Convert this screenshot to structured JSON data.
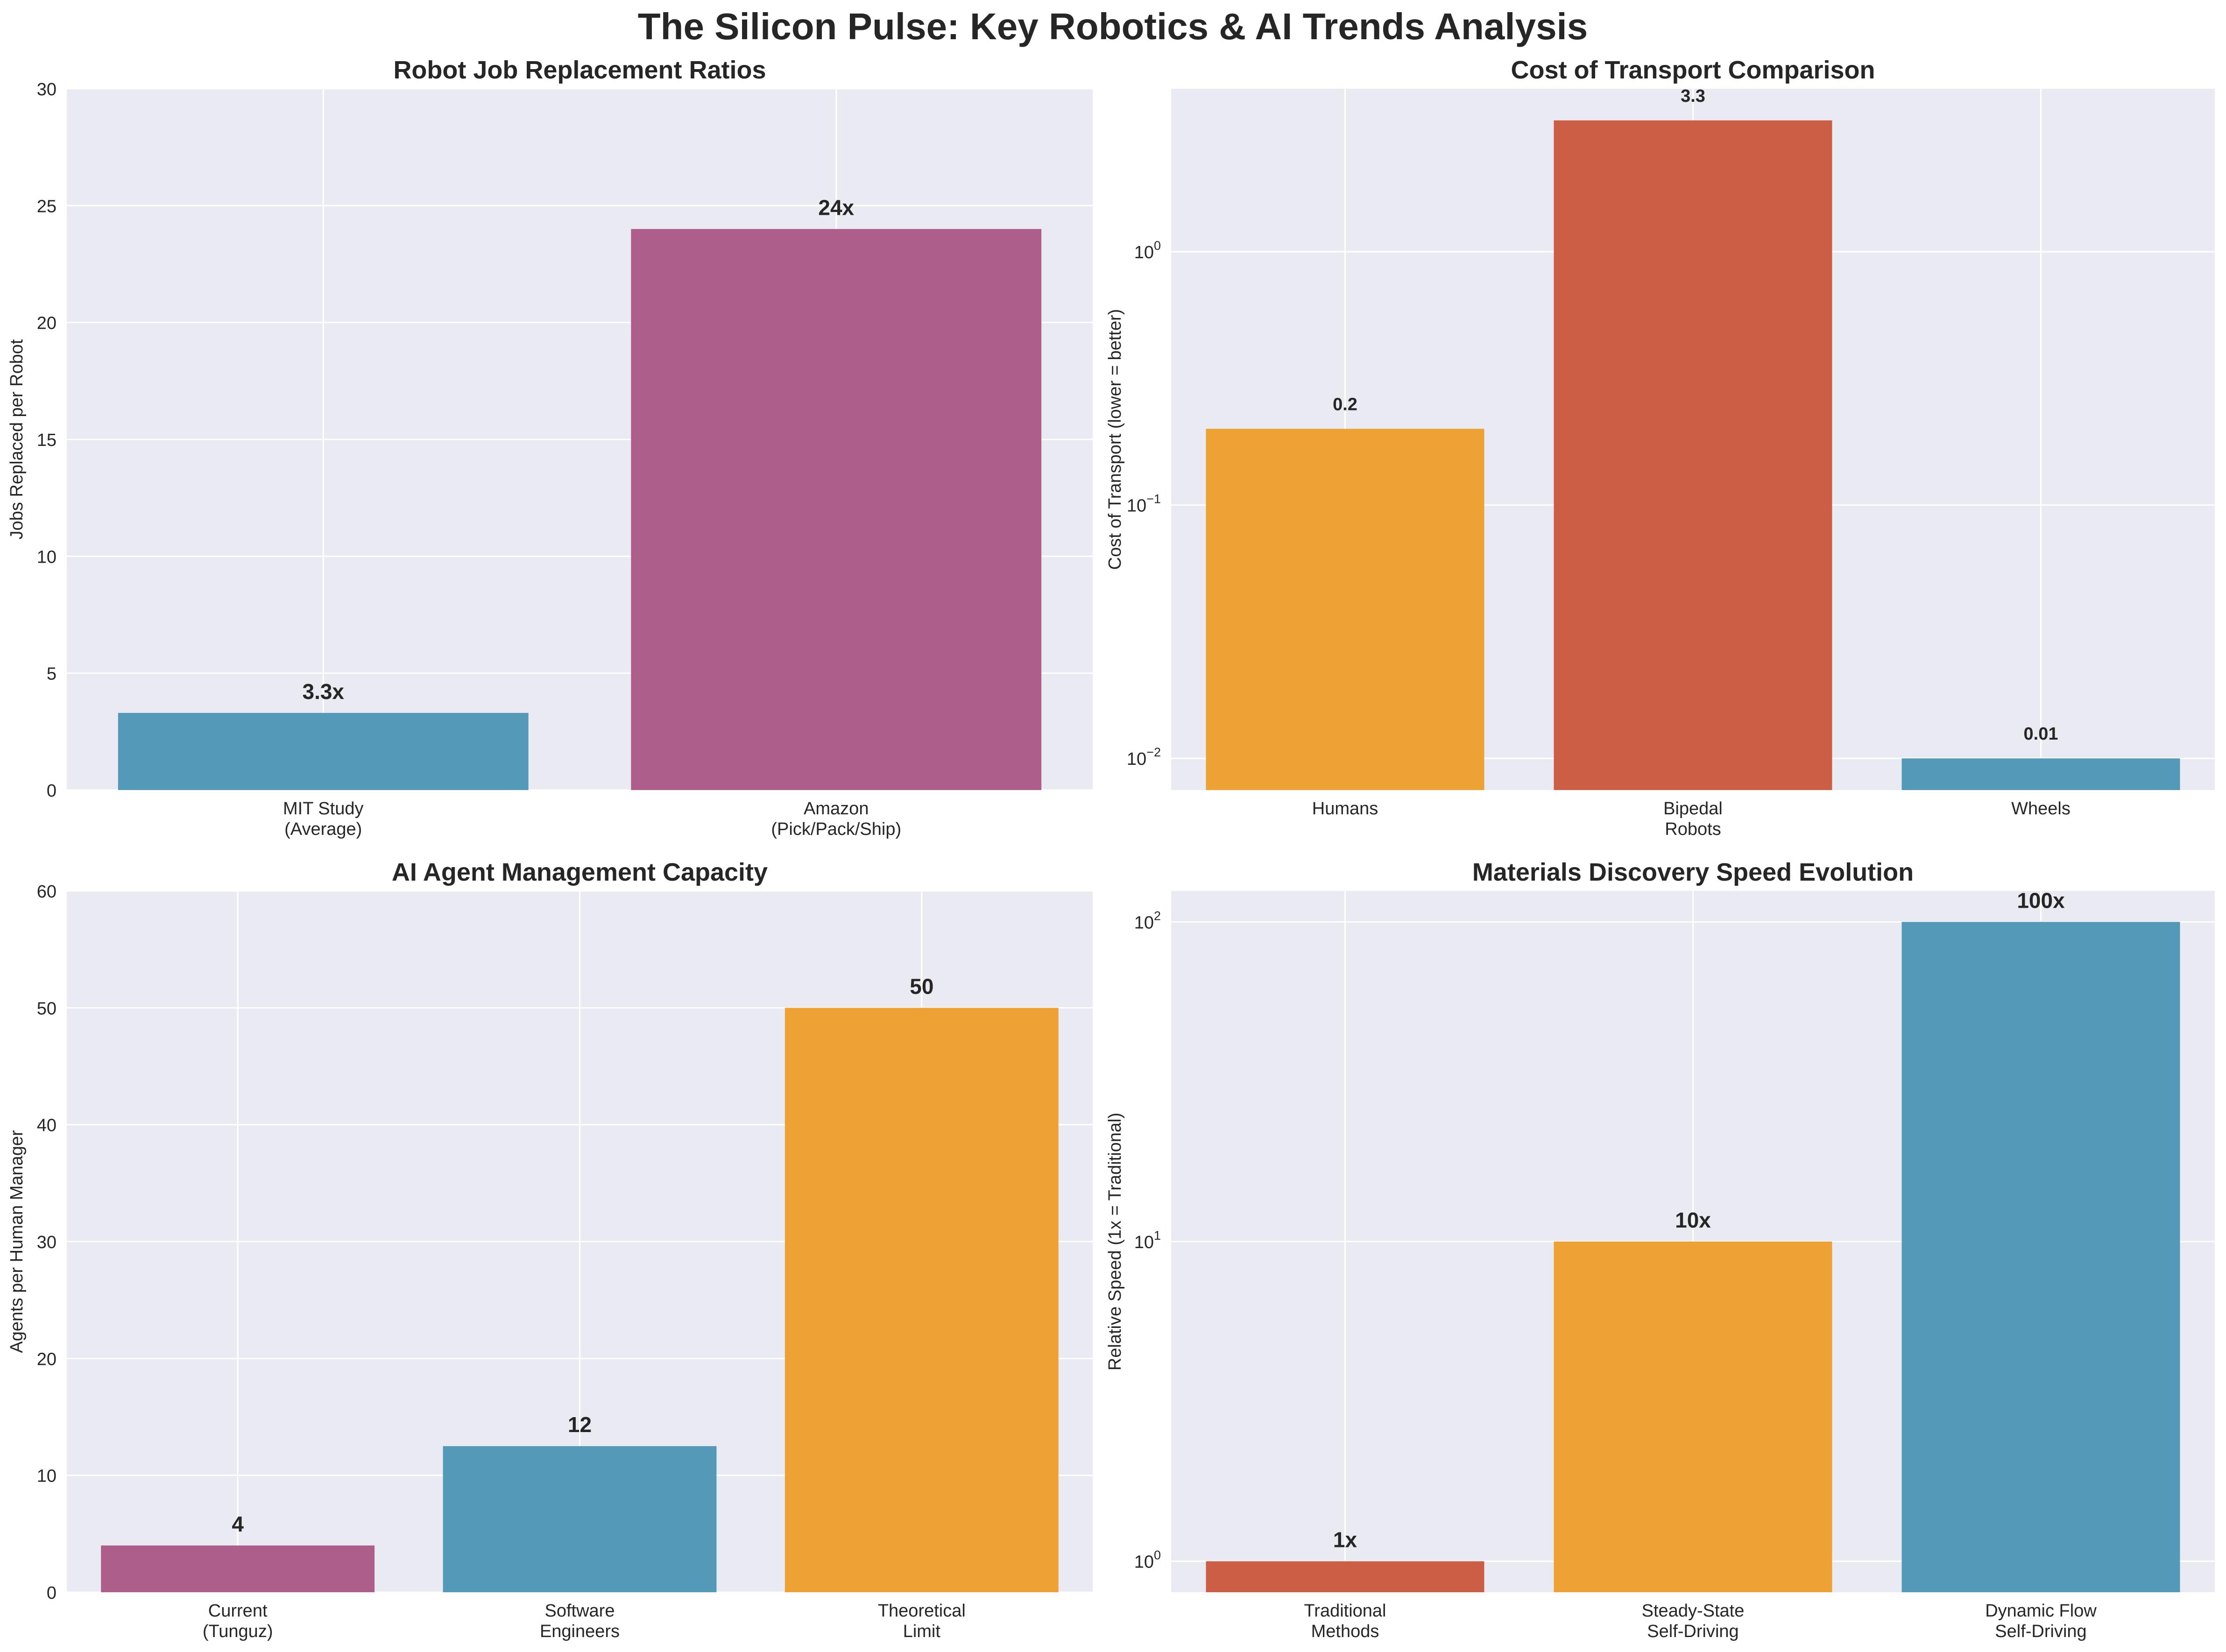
{
  "figure": {
    "suptitle": "The Silicon Pulse: Key Robotics & AI Trends Analysis"
  },
  "colors": {
    "panel_bg": "#eaeaf2",
    "grid": "#ffffff",
    "blue": "#5599b9",
    "magenta": "#ad5e8a",
    "orange": "#eea234",
    "red": "#cd5e46",
    "text": "#262626"
  },
  "chart_data": [
    {
      "id": "robot-job-replacement",
      "type": "bar",
      "title": "Robot Job Replacement Ratios",
      "xlabel": "",
      "ylabel": "Jobs Replaced per Robot",
      "scale": "linear",
      "ylim": [
        0,
        30
      ],
      "yticks": [
        "0",
        "5",
        "10",
        "15",
        "20",
        "25",
        "30"
      ],
      "ytick_values": [
        0,
        5,
        10,
        15,
        20,
        25,
        30
      ],
      "categories": [
        [
          "MIT Study",
          "(Average)"
        ],
        [
          "Amazon",
          "(Pick/Pack/Ship)"
        ]
      ],
      "values": [
        3.3,
        24
      ],
      "data_labels": [
        "3.3x",
        "24x"
      ],
      "colors": [
        "#5599b9",
        "#ad5e8a"
      ],
      "grid": true
    },
    {
      "id": "cost-of-transport",
      "type": "bar",
      "title": "Cost of Transport Comparison",
      "xlabel": "",
      "ylabel": "Cost of Transport (lower = better)",
      "scale": "log",
      "ylim": [
        0.0075,
        4.4
      ],
      "yticks": [
        {
          "base": "10",
          "exp": "−2"
        },
        {
          "base": "10",
          "exp": "−1"
        },
        {
          "base": "10",
          "exp": "0"
        }
      ],
      "ytick_values": [
        0.01,
        0.1,
        1
      ],
      "categories": [
        [
          "Humans"
        ],
        [
          "Bipedal",
          "Robots"
        ],
        [
          "Wheels"
        ]
      ],
      "values": [
        0.2,
        3.3,
        0.01
      ],
      "data_labels": [
        "0.2",
        "3.3",
        "0.01"
      ],
      "colors": [
        "#eea234",
        "#cd5e46",
        "#5599b9"
      ],
      "grid": true
    },
    {
      "id": "ai-agent-management",
      "type": "bar",
      "title": "AI Agent Management Capacity",
      "xlabel": "",
      "ylabel": "Agents per Human Manager",
      "scale": "linear",
      "ylim": [
        0,
        60
      ],
      "yticks": [
        "0",
        "10",
        "20",
        "30",
        "40",
        "50",
        "60"
      ],
      "ytick_values": [
        0,
        10,
        20,
        30,
        40,
        50,
        60
      ],
      "categories": [
        [
          "Current",
          "(Tunguz)"
        ],
        [
          "Software",
          "Engineers"
        ],
        [
          "Theoretical",
          "Limit"
        ]
      ],
      "values": [
        4,
        12.5,
        50
      ],
      "data_labels": [
        "4",
        "12",
        "50"
      ],
      "colors": [
        "#ad5e8a",
        "#5599b9",
        "#eea234"
      ],
      "grid": true
    },
    {
      "id": "materials-discovery-speed",
      "type": "bar",
      "title": "Materials Discovery Speed Evolution",
      "xlabel": "",
      "ylabel": "Relative Speed (1x = Traditional)",
      "scale": "log",
      "ylim": [
        0.8,
        125
      ],
      "yticks": [
        {
          "base": "10",
          "exp": "0"
        },
        {
          "base": "10",
          "exp": "1"
        },
        {
          "base": "10",
          "exp": "2"
        }
      ],
      "ytick_values": [
        1,
        10,
        100
      ],
      "categories": [
        [
          "Traditional",
          "Methods"
        ],
        [
          "Steady-State",
          "Self-Driving"
        ],
        [
          "Dynamic Flow",
          "Self-Driving"
        ]
      ],
      "values": [
        1,
        10,
        100
      ],
      "data_labels": [
        "1x",
        "10x",
        "100x"
      ],
      "colors": [
        "#cd5e46",
        "#eea234",
        "#5599b9"
      ],
      "grid": true
    }
  ]
}
